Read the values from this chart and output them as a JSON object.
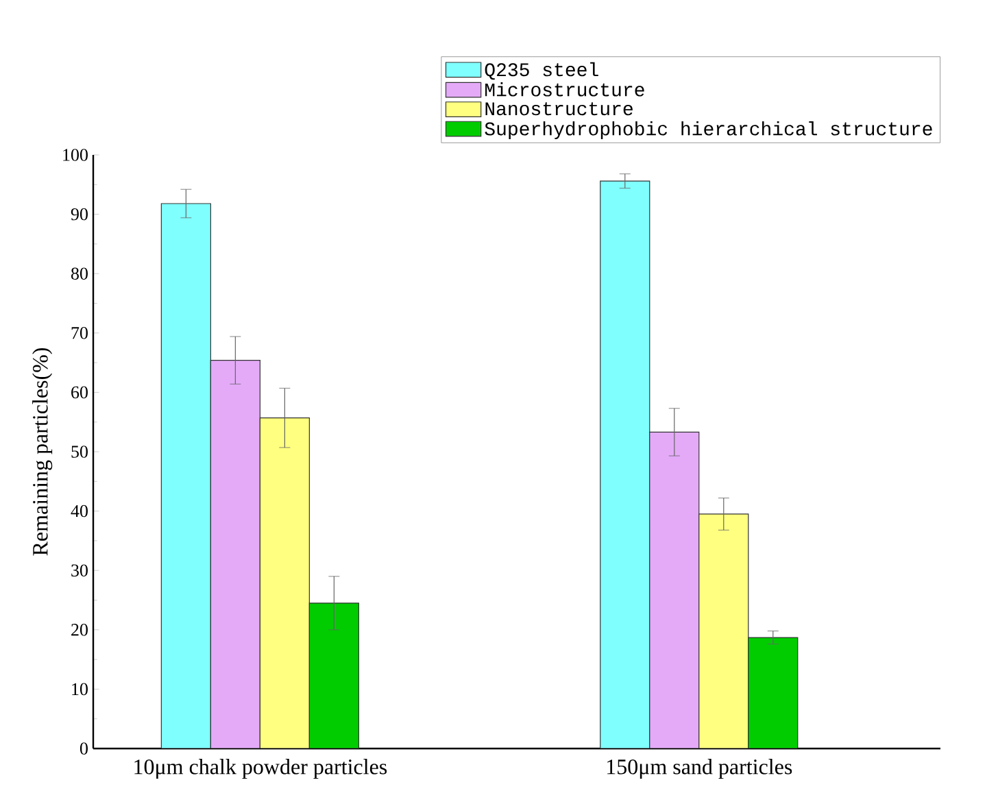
{
  "chart_data": {
    "type": "bar",
    "ylabel": "Remaining particles(%)",
    "categories": [
      "10μm chalk powder particles",
      "150μm sand particles"
    ],
    "series": [
      {
        "name": "Q235 steel",
        "color": "#80ffff",
        "values": [
          91.8,
          95.6
        ],
        "errors": [
          2.4,
          1.2
        ]
      },
      {
        "name": "Microstructure",
        "color": "#e4aaf8",
        "values": [
          65.4,
          53.3
        ],
        "errors": [
          4,
          4
        ]
      },
      {
        "name": "Nanostructure",
        "color": "#ffff80",
        "values": [
          55.7,
          39.5
        ],
        "errors": [
          5,
          2.7
        ]
      },
      {
        "name": "Superhydrophobic hierarchical structure",
        "color": "#00cc00",
        "values": [
          24.5,
          18.7
        ],
        "errors": [
          4.5,
          1.1
        ]
      }
    ],
    "ylim": [
      0,
      100
    ],
    "yticks": [
      0,
      10,
      20,
      30,
      40,
      50,
      60,
      70,
      80,
      90,
      100
    ],
    "legend": "top right",
    "grid": false
  }
}
